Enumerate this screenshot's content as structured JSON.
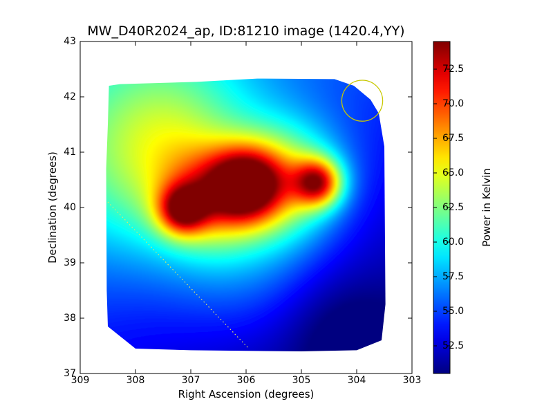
{
  "chart_data": {
    "type": "heatmap",
    "title": "MW_D40R2024_ap, ID:81210 image (1420.4,YY)",
    "xlabel": "Right Ascension (degrees)",
    "ylabel": "Declination (degrees)",
    "colorbar_label": "Power in Kelvin",
    "xlim": [
      309,
      303
    ],
    "ylim": [
      37,
      43
    ],
    "x_ticks": [
      "309",
      "308",
      "307",
      "306",
      "305",
      "304",
      "303"
    ],
    "y_ticks": [
      "37",
      "38",
      "39",
      "40",
      "41",
      "42",
      "43"
    ],
    "colorbar_range": [
      50.5,
      74.5
    ],
    "colorbar_ticks": [
      "52.5",
      "55.0",
      "57.5",
      "60.0",
      "62.5",
      "65.0",
      "67.5",
      "70.0",
      "72.5"
    ],
    "colormap": "jet",
    "background_level_kelvin": 53.5,
    "emission_blobs": [
      {
        "ra": 306.0,
        "dec": 40.4,
        "peak_kelvin": 72.5,
        "sigma_deg": 0.45
      },
      {
        "ra": 304.7,
        "dec": 40.45,
        "peak_kelvin": 72.0,
        "sigma_deg": 0.3
      },
      {
        "ra": 307.15,
        "dec": 39.95,
        "peak_kelvin": 69.5,
        "sigma_deg": 0.3
      },
      {
        "ra": 305.3,
        "dec": 40.5,
        "peak_kelvin": 66.5,
        "sigma_deg": 0.7
      },
      {
        "ra": 306.7,
        "dec": 40.2,
        "peak_kelvin": 65.0,
        "sigma_deg": 0.6
      },
      {
        "ra": 307.9,
        "dec": 40.7,
        "peak_kelvin": 61.0,
        "sigma_deg": 1.2
      },
      {
        "ra": 307.2,
        "dec": 41.4,
        "peak_kelvin": 59.0,
        "sigma_deg": 1.0
      },
      {
        "ra": 306.0,
        "dec": 39.3,
        "peak_kelvin": 58.5,
        "sigma_deg": 1.0
      },
      {
        "ra": 304.3,
        "dec": 37.8,
        "peak_kelvin": 51.0,
        "sigma_deg": 0.7
      }
    ],
    "annotations": {
      "circle": {
        "ra": 303.9,
        "dec": 41.93,
        "radius_deg": 0.37,
        "color": "#c8c800"
      },
      "dotted_line": {
        "from": [
          308.5,
          40.1
        ],
        "to": [
          305.95,
          37.45
        ],
        "color": "#e8e860"
      }
    },
    "coverage_polygon_ra_dec": [
      [
        308.48,
        42.2
      ],
      [
        308.28,
        42.23
      ],
      [
        306.9,
        42.27
      ],
      [
        305.8,
        42.33
      ],
      [
        304.4,
        42.32
      ],
      [
        304.05,
        42.2
      ],
      [
        303.75,
        41.95
      ],
      [
        303.6,
        41.7
      ],
      [
        303.5,
        41.1
      ],
      [
        303.48,
        38.25
      ],
      [
        303.55,
        37.6
      ],
      [
        304.0,
        37.42
      ],
      [
        305.0,
        37.4
      ],
      [
        307.0,
        37.42
      ],
      [
        308.0,
        37.45
      ],
      [
        308.5,
        37.85
      ],
      [
        308.52,
        38.5
      ],
      [
        308.53,
        40.7
      ],
      [
        308.5,
        41.5
      ]
    ]
  }
}
